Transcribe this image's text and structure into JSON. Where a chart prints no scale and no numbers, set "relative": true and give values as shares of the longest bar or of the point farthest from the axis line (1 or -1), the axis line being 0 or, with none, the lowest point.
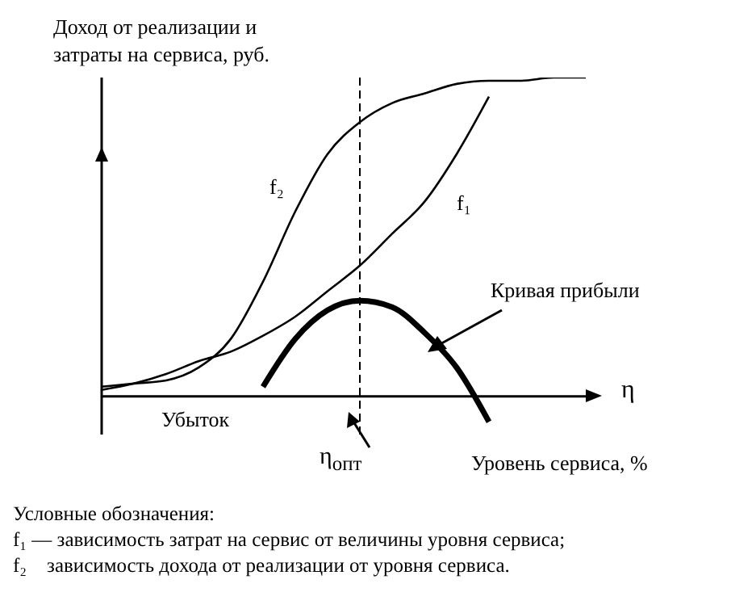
{
  "chart_data": {
    "type": "line",
    "relative": true,
    "ylabel": "Доход от реализации и\nзатраты на сервиса, руб.",
    "xlabel": "Уровень сервиса, %",
    "categories": [
      null,
      null,
      null,
      null,
      null,
      null,
      null,
      null,
      null,
      null,
      null,
      null,
      null,
      null,
      null,
      null
    ],
    "series": [
      {
        "name": "f₂",
        "color": "#000000",
        "values": [
          0.03,
          0.04,
          0.05,
          0.09,
          0.18,
          0.36,
          0.58,
          0.76,
          0.86,
          0.92,
          0.95,
          0.98,
          0.99,
          0.99,
          1,
          1
        ]
      },
      {
        "name": "f₁",
        "color": "#000000",
        "values": [
          0.02,
          0.04,
          0.07,
          0.11,
          0.14,
          0.19,
          0.25,
          0.33,
          0.41,
          0.51,
          0.61,
          0.76,
          0.94,
          null,
          null,
          null
        ]
      },
      {
        "color": "#000000",
        "values": [
          null,
          null,
          null,
          null,
          null,
          0.03,
          0.18,
          0.27,
          0.3,
          0.28,
          0.2,
          0.09,
          -0.08,
          null,
          null,
          null
        ]
      }
    ],
    "annotations": [
      "Кривая прибыли",
      "Убыток",
      "η",
      "η$_{опт}$",
      "Условные обозначения:",
      "f₁ — зависимость затрат на сервис от величины уровня сервиса;",
      "f₂    зависимость дохода от реализации от уровня сервиса."
    ],
    "grid": false,
    "legend": false,
    "marker": "none",
    "line_style": "solid"
  }
}
